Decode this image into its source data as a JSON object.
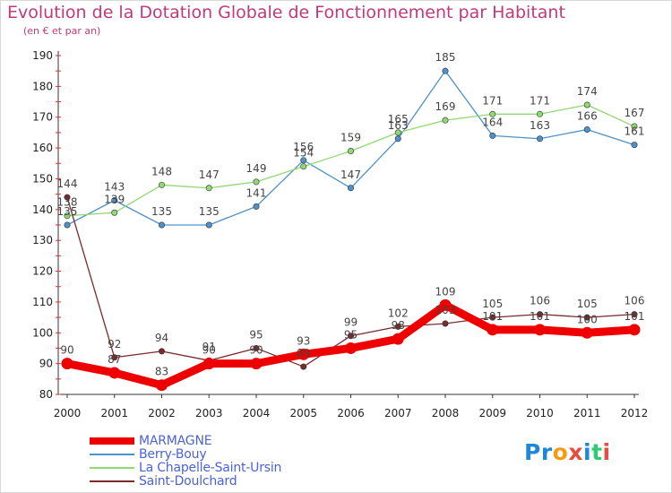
{
  "page": {
    "title": "Evolution de la Dotation Globale de Fonctionnement par Habitant",
    "subtitle": "(en € et par an)"
  },
  "logo": {
    "text": "Proxiti",
    "letters": [
      {
        "ch": "P",
        "color": "#1e88d8"
      },
      {
        "ch": "r",
        "color": "#1e88d8"
      },
      {
        "ch": "o",
        "color": "#f39c12"
      },
      {
        "ch": "x",
        "color": "#e74c3c"
      },
      {
        "ch": "i",
        "color": "#1e88d8"
      },
      {
        "ch": "t",
        "color": "#2ecc71"
      },
      {
        "ch": "i",
        "color": "#e74c3c"
      }
    ]
  },
  "chart_data": {
    "type": "line",
    "title": "Evolution de la Dotation Globale de Fonctionnement par Habitant",
    "subtitle": "(en € et par an)",
    "xlabel": "",
    "ylabel": "",
    "ylim": [
      80,
      190
    ],
    "yticks": [
      "80",
      "90",
      "100",
      "110",
      "120",
      "130",
      "140",
      "150",
      "160",
      "170",
      "180",
      "190"
    ],
    "x": [
      "2000",
      "2001",
      "2002",
      "2003",
      "2004",
      "2005",
      "2006",
      "2007",
      "2008",
      "2009",
      "2010",
      "2011",
      "2012"
    ],
    "grid": false,
    "legend_position": "bottom-left",
    "series": [
      {
        "name": "MARMAGNE",
        "color": "#ee0000",
        "values": [
          90,
          87,
          83,
          90,
          90,
          93,
          95,
          98,
          109,
          101,
          101,
          100,
          101
        ]
      },
      {
        "name": "Berry-Bouy",
        "color": "#4d92c9",
        "values": [
          135,
          143,
          135,
          135,
          141,
          156,
          147,
          163,
          185,
          164,
          163,
          166,
          161
        ]
      },
      {
        "name": "La Chapelle-Saint-Ursin",
        "color": "#90d872",
        "values": [
          138,
          139,
          148,
          147,
          149,
          154,
          159,
          165,
          169,
          171,
          171,
          174,
          167
        ]
      },
      {
        "name": "Saint-Doulchard",
        "color": "#7a2a2a",
        "values": [
          144,
          92,
          94,
          91,
          95,
          89,
          99,
          102,
          103,
          105,
          106,
          105,
          106
        ]
      }
    ],
    "data_labels": [
      {
        "series": 0,
        "labels": [
          "90",
          "87",
          "83",
          "90",
          "90",
          "93",
          "95",
          "98",
          "109",
          "101",
          "101",
          "100",
          "101"
        ]
      },
      {
        "series": 1,
        "labels": [
          "135",
          "143",
          "135",
          "135",
          "141",
          "156",
          "147",
          "163",
          "185",
          "164",
          "163",
          "166",
          "161"
        ]
      },
      {
        "series": 2,
        "labels": [
          "138",
          "139",
          "148",
          "147",
          "149",
          "154",
          "159",
          "165",
          "169",
          "171",
          "171",
          "174",
          "167"
        ]
      },
      {
        "series": 3,
        "labels": [
          "144",
          "92",
          "94",
          "91",
          "95",
          "89",
          "99",
          "102",
          "103",
          "105",
          "106",
          "105",
          "106"
        ]
      }
    ]
  }
}
